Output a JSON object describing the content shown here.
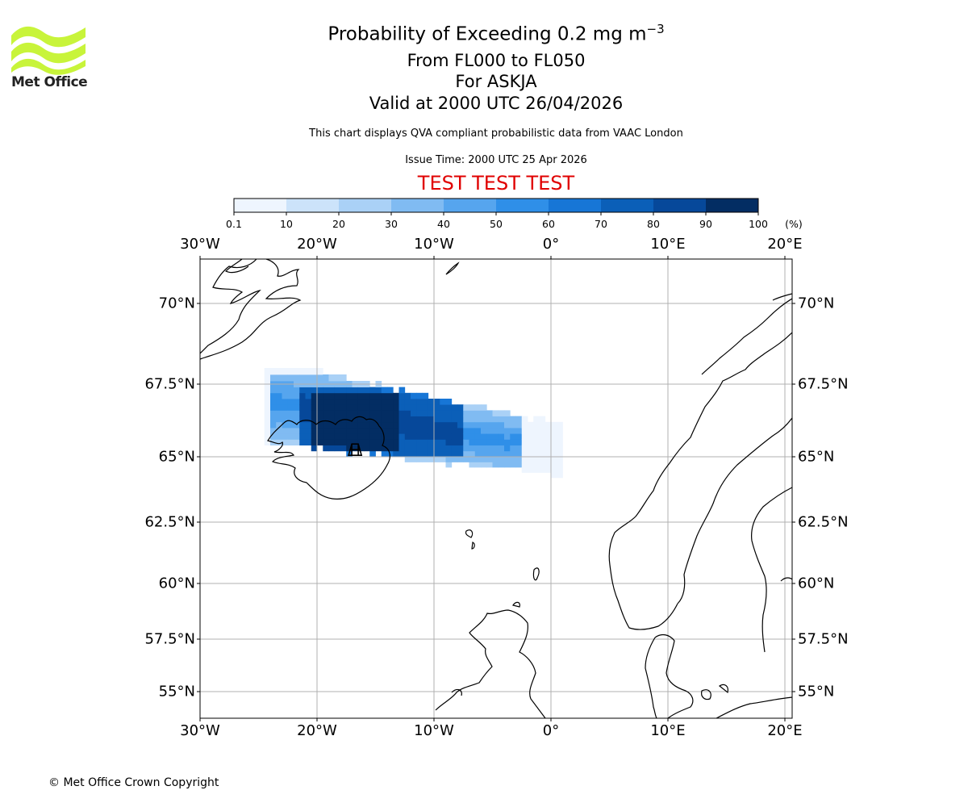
{
  "logo": {
    "name": "Met Office",
    "brand_color": "#c8f43a"
  },
  "title": {
    "line1": "Probability of Exceeding 0.2 mg m",
    "line1_sup": "−3",
    "line2": "From FL000 to FL050",
    "line3": "For ASKJA",
    "line4": "Valid at 2000 UTC 26/04/2026"
  },
  "subtitle": "This chart displays QVA compliant probabilistic data from VAAC London",
  "issue_time": "Issue Time: 2000 UTC 25 Apr 2026",
  "test_banner": "TEST TEST TEST",
  "test_color": "#e00000",
  "colorbar": {
    "unit": "(%)",
    "ticks": [
      "0.1",
      "10",
      "20",
      "30",
      "40",
      "50",
      "60",
      "70",
      "80",
      "90",
      "100"
    ],
    "colors": [
      "#eef5fe",
      "#cce3fa",
      "#aad1f6",
      "#80bbf2",
      "#56a5ee",
      "#2f8fe8",
      "#1776d6",
      "#0b5fb8",
      "#06489a",
      "#032d63"
    ]
  },
  "map": {
    "lon_labels": [
      "30°W",
      "20°W",
      "10°W",
      "0°",
      "10°E",
      "20°E"
    ],
    "lat_labels": [
      "70°N",
      "67.5°N",
      "65°N",
      "62.5°N",
      "60°N",
      "57.5°N",
      "55°N"
    ],
    "volcano": "ASKJA"
  },
  "chart_data": {
    "type": "heatmap",
    "title": "Probability of Exceeding 0.2 mg m−3",
    "units": "%",
    "levels": [
      0.1,
      10,
      20,
      30,
      40,
      50,
      60,
      70,
      80,
      90,
      100
    ],
    "region": {
      "lon_range": [
        -30,
        20
      ],
      "lat_range": [
        54,
        71.5
      ]
    },
    "plume": [
      {
        "lon_range": [
          -24.5,
          1.0
        ],
        "lat_range": [
          63.5,
          68.0
        ],
        "probability_min": 0.1,
        "probability_max": 10
      },
      {
        "lon_range": [
          -24.0,
          -2.5
        ],
        "lat_range": [
          64.5,
          67.8
        ],
        "probability_min": 30,
        "probability_max": 60
      },
      {
        "lon_range": [
          -21.5,
          -7.5
        ],
        "lat_range": [
          65.0,
          67.5
        ],
        "probability_min": 70,
        "probability_max": 90
      },
      {
        "lon_range": [
          -20.5,
          -13.0
        ],
        "lat_range": [
          65.2,
          67.3
        ],
        "probability_min": 90,
        "probability_max": 100
      }
    ],
    "source": {
      "name": "ASKJA",
      "lon": -16.75,
      "lat": 65.05
    }
  },
  "copyright": "© Met Office Crown Copyright"
}
